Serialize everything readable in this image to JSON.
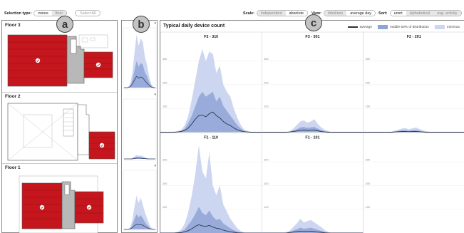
{
  "toolbar": {
    "selection_label": "Selection type:",
    "selection_options": [
      "zones",
      "floor"
    ],
    "select_all": "Select All",
    "scale_label": "Scale:",
    "scale_options": [
      "independent",
      "absolute"
    ],
    "view_label": "View:",
    "view_options": [
      "timelines",
      "average day"
    ],
    "sort_label": "Sort:",
    "sort_options": [
      "unsrt",
      "alphabetical",
      "avg. activity"
    ]
  },
  "badges": {
    "a": "a",
    "b": "b",
    "c": "c"
  },
  "floors": [
    {
      "title": "Floor 3"
    },
    {
      "title": "Floor 2"
    },
    {
      "title": "Floor 1"
    }
  ],
  "colors": {
    "zone_red": "#c4161c",
    "band_mid": "#8ea3d6",
    "band_minmax": "#cdd6f0",
    "average_line": "#2a3550"
  },
  "chart": {
    "title": "Typical daily device count",
    "legend": {
      "average": "average",
      "middle": "middle 50% of distribution",
      "minmax": "min/max"
    },
    "y_ticks": [
      "300",
      "200",
      "100"
    ]
  },
  "chart_data": {
    "type": "area",
    "title": "Typical daily device count",
    "y_ticks": [
      100,
      200,
      300
    ],
    "ylim": [
      0,
      380
    ],
    "panels": [
      {
        "name": "F3 - 310",
        "minmax": [
          0,
          0,
          0,
          0,
          2,
          5,
          10,
          30,
          70,
          140,
          220,
          300,
          350,
          300,
          340,
          330,
          250,
          280,
          200,
          170,
          150,
          100,
          60,
          30,
          10,
          5,
          0,
          0,
          0,
          0
        ],
        "mid": [
          0,
          0,
          0,
          0,
          1,
          3,
          6,
          15,
          40,
          70,
          110,
          150,
          170,
          150,
          160,
          170,
          130,
          150,
          110,
          90,
          70,
          50,
          30,
          15,
          5,
          2,
          0,
          0,
          0,
          0
        ],
        "avg": [
          0,
          0,
          0,
          0,
          0,
          1,
          3,
          8,
          18,
          35,
          55,
          70,
          72,
          65,
          78,
          85,
          70,
          60,
          45,
          35,
          28,
          18,
          10,
          5,
          2,
          1,
          0,
          0,
          0,
          0
        ]
      },
      {
        "name": "F3 - 301",
        "minmax": [
          0,
          0,
          0,
          0,
          0,
          0,
          0,
          0,
          5,
          15,
          30,
          45,
          50,
          40,
          45,
          55,
          35,
          20,
          10,
          5,
          0,
          0,
          0,
          0,
          0,
          0,
          0,
          0,
          0,
          0
        ],
        "mid": [
          0,
          0,
          0,
          0,
          0,
          0,
          0,
          0,
          2,
          6,
          12,
          20,
          22,
          18,
          20,
          22,
          15,
          8,
          4,
          2,
          0,
          0,
          0,
          0,
          0,
          0,
          0,
          0,
          0,
          0
        ],
        "avg": [
          0,
          0,
          0,
          0,
          0,
          0,
          0,
          0,
          1,
          3,
          5,
          8,
          9,
          7,
          8,
          9,
          6,
          3,
          1,
          0,
          0,
          0,
          0,
          0,
          0,
          0,
          0,
          0,
          0,
          0
        ]
      },
      {
        "name": "F2 - 201",
        "minmax": [
          0,
          0,
          0,
          0,
          0,
          0,
          0,
          0,
          2,
          6,
          10,
          15,
          18,
          12,
          16,
          20,
          14,
          8,
          4,
          2,
          0,
          0,
          0,
          0,
          0,
          0,
          0,
          0,
          0,
          0
        ],
        "mid": [
          0,
          0,
          0,
          0,
          0,
          0,
          0,
          0,
          1,
          3,
          5,
          7,
          8,
          6,
          7,
          9,
          6,
          3,
          1,
          0,
          0,
          0,
          0,
          0,
          0,
          0,
          0,
          0,
          0,
          0
        ],
        "avg": [
          0,
          0,
          0,
          0,
          0,
          0,
          0,
          0,
          0,
          1,
          2,
          3,
          3,
          2,
          3,
          3,
          2,
          1,
          0,
          0,
          0,
          0,
          0,
          0,
          0,
          0,
          0,
          0,
          0,
          0
        ]
      },
      {
        "name": "F1 - 110",
        "minmax": [
          0,
          0,
          0,
          0,
          2,
          5,
          15,
          40,
          90,
          160,
          250,
          370,
          260,
          230,
          340,
          200,
          160,
          200,
          120,
          90,
          60,
          40,
          20,
          8,
          2,
          0,
          0,
          0,
          0,
          0
        ],
        "mid": [
          0,
          0,
          0,
          0,
          1,
          3,
          6,
          15,
          35,
          55,
          80,
          110,
          85,
          75,
          95,
          70,
          55,
          60,
          40,
          30,
          20,
          12,
          6,
          3,
          1,
          0,
          0,
          0,
          0,
          0
        ],
        "avg": [
          0,
          0,
          0,
          0,
          0,
          1,
          2,
          5,
          10,
          18,
          28,
          35,
          30,
          28,
          32,
          25,
          20,
          18,
          12,
          8,
          5,
          3,
          1,
          0,
          0,
          0,
          0,
          0,
          0,
          0
        ]
      },
      {
        "name": "F1 - 101",
        "minmax": [
          0,
          0,
          0,
          0,
          0,
          0,
          0,
          3,
          10,
          25,
          40,
          60,
          45,
          50,
          55,
          45,
          35,
          25,
          12,
          5,
          0,
          0,
          0,
          0,
          0,
          0,
          0,
          0,
          0,
          0
        ],
        "mid": [
          0,
          0,
          0,
          0,
          0,
          0,
          0,
          1,
          4,
          10,
          16,
          22,
          18,
          20,
          22,
          18,
          13,
          9,
          4,
          1,
          0,
          0,
          0,
          0,
          0,
          0,
          0,
          0,
          0,
          0
        ],
        "avg": [
          0,
          0,
          0,
          0,
          0,
          0,
          0,
          0,
          2,
          4,
          6,
          8,
          7,
          7,
          8,
          6,
          4,
          3,
          1,
          0,
          0,
          0,
          0,
          0,
          0,
          0,
          0,
          0,
          0,
          0
        ]
      },
      {
        "name": "",
        "minmax": [],
        "mid": [],
        "avg": []
      }
    ],
    "mini_panels": [
      {
        "minmax": [
          0,
          0,
          2,
          10,
          40,
          90,
          140,
          110,
          130,
          120,
          80,
          60,
          30,
          10,
          2,
          0
        ],
        "mid": [
          0,
          0,
          1,
          5,
          20,
          45,
          70,
          55,
          65,
          60,
          40,
          30,
          15,
          5,
          1,
          0
        ],
        "avg": [
          0,
          0,
          0,
          3,
          10,
          20,
          30,
          25,
          28,
          26,
          18,
          12,
          6,
          2,
          0,
          0
        ]
      },
      {
        "minmax": [
          0,
          0,
          0,
          0,
          2,
          6,
          10,
          8,
          9,
          7,
          4,
          2,
          0,
          0,
          0,
          0
        ],
        "mid": [
          0,
          0,
          0,
          0,
          1,
          3,
          5,
          4,
          4,
          3,
          2,
          1,
          0,
          0,
          0,
          0
        ],
        "avg": [
          0,
          0,
          0,
          0,
          0,
          1,
          2,
          2,
          2,
          1,
          1,
          0,
          0,
          0,
          0,
          0
        ]
      },
      {
        "minmax": [
          0,
          0,
          1,
          6,
          25,
          60,
          90,
          70,
          85,
          65,
          45,
          30,
          15,
          5,
          1,
          0
        ],
        "mid": [
          0,
          0,
          0,
          3,
          12,
          28,
          40,
          32,
          38,
          30,
          20,
          12,
          6,
          2,
          0,
          0
        ],
        "avg": [
          0,
          0,
          0,
          1,
          5,
          10,
          14,
          12,
          13,
          11,
          8,
          5,
          2,
          1,
          0,
          0
        ]
      }
    ]
  }
}
